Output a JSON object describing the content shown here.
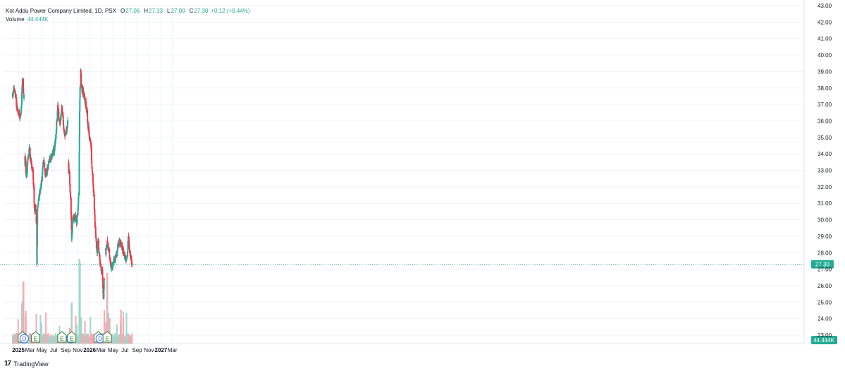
{
  "legend": {
    "symbol": "Kot Addu Power Company Limited, 1D, PSX",
    "o_key": "O",
    "o_val": "27.06",
    "h_key": "H",
    "h_val": "27.33",
    "l_key": "L",
    "l_val": "27.00",
    "c_key": "C",
    "c_val": "27.30",
    "change": "+0.12 (+0.44%)",
    "volume_label": "Volume",
    "volume_value": "44.444K"
  },
  "brand": {
    "logo": "17",
    "name": "TradingView"
  },
  "colors": {
    "up": "#22ab94",
    "down": "#f23645",
    "up_vol": "#9fd8cc",
    "down_vol": "#f7a9b0",
    "grid": "#f0f3fa",
    "axis_text": "#131722",
    "price_line": "#22ab94"
  },
  "chart_data": {
    "type": "candlestick",
    "title": "Kot Addu Power Company Limited, 1D, PSX",
    "y_axis": {
      "ticks": [
        "43.00",
        "42.00",
        "41.00",
        "40.00",
        "39.00",
        "38.00",
        "37.00",
        "36.00",
        "35.00",
        "34.00",
        "33.00",
        "32.00",
        "31.00",
        "30.00",
        "29.00",
        "28.00",
        "27.00",
        "26.00",
        "25.00",
        "24.00",
        "23.00"
      ],
      "range": [
        22.6,
        43.0
      ]
    },
    "x_axis": {
      "ticks": [
        "2025",
        "Mar",
        "May",
        "Jul",
        "Sep",
        "Nov",
        "2026",
        "Mar",
        "May",
        "Jul",
        "Sep",
        "Nov",
        "2027",
        "Mar"
      ],
      "bold": [
        "2025",
        "2026",
        "2027"
      ]
    },
    "last_price": "27.30",
    "volume_last": "44.444K",
    "price_path": [
      [
        "2025-01-01",
        37.6
      ],
      [
        "2025-01-10",
        38.0
      ],
      [
        "2025-01-20",
        37.0
      ],
      [
        "2025-02-01",
        36.3
      ],
      [
        "2025-02-10",
        36.2
      ],
      [
        "2025-02-15",
        37.0
      ],
      [
        "2025-02-20",
        38.6
      ],
      [
        "2025-02-25",
        37.8
      ],
      [
        "2025-03-01",
        37.3
      ],
      [
        "2025-03-05",
        33.8
      ],
      [
        "2025-03-12",
        32.6
      ],
      [
        "2025-03-20",
        33.6
      ],
      [
        "2025-03-28",
        34.3
      ],
      [
        "2025-04-05",
        33.4
      ],
      [
        "2025-04-15",
        32.9
      ],
      [
        "2025-04-22",
        30.6
      ],
      [
        "2025-04-28",
        30.8
      ],
      [
        "2025-05-03",
        29.7
      ],
      [
        "2025-05-05",
        27.4
      ],
      [
        "2025-05-08",
        30.6
      ],
      [
        "2025-05-15",
        31.3
      ],
      [
        "2025-05-25",
        32.0
      ],
      [
        "2025-06-01",
        32.6
      ],
      [
        "2025-06-08",
        33.9
      ],
      [
        "2025-06-15",
        32.8
      ],
      [
        "2025-06-25",
        32.9
      ],
      [
        "2025-07-05",
        33.6
      ],
      [
        "2025-07-15",
        33.7
      ],
      [
        "2025-07-25",
        34.0
      ],
      [
        "2025-08-05",
        34.5
      ],
      [
        "2025-08-12",
        35.5
      ],
      [
        "2025-08-20",
        36.8
      ],
      [
        "2025-08-28",
        35.8
      ],
      [
        "2025-09-05",
        36.2
      ],
      [
        "2025-09-10",
        36.9
      ],
      [
        "2025-09-15",
        36.4
      ],
      [
        "2025-09-20",
        35.3
      ],
      [
        "2025-09-28",
        35.2
      ],
      [
        "2025-10-05",
        35.4
      ],
      [
        "2025-10-10",
        35.9
      ],
      [
        "2025-10-14",
        33.4
      ],
      [
        "2025-10-20",
        32.2
      ],
      [
        "2025-10-25",
        31.2
      ],
      [
        "2025-10-30",
        29.0
      ],
      [
        "2025-11-05",
        30.2
      ],
      [
        "2025-11-15",
        30.1
      ],
      [
        "2025-11-25",
        29.9
      ],
      [
        "2025-12-01",
        30.6
      ],
      [
        "2025-12-06",
        31.8
      ],
      [
        "2025-12-10",
        36.5
      ],
      [
        "2025-12-14",
        39.5
      ],
      [
        "2025-12-20",
        38.0
      ],
      [
        "2026-01-01",
        37.6
      ],
      [
        "2026-01-15",
        36.6
      ],
      [
        "2026-01-25",
        35.2
      ],
      [
        "2026-02-05",
        34.8
      ],
      [
        "2026-02-12",
        33.0
      ],
      [
        "2026-02-20",
        31.5
      ],
      [
        "2026-02-27",
        29.7
      ],
      [
        "2026-03-05",
        28.6
      ],
      [
        "2026-03-08",
        27.6
      ],
      [
        "2026-03-15",
        29.0
      ],
      [
        "2026-03-20",
        27.8
      ],
      [
        "2026-03-28",
        27.0
      ],
      [
        "2026-04-05",
        26.9
      ],
      [
        "2026-04-10",
        25.3
      ],
      [
        "2026-04-15",
        26.4
      ],
      [
        "2026-04-22",
        28.0
      ],
      [
        "2026-04-30",
        28.6
      ],
      [
        "2026-05-08",
        28.1
      ],
      [
        "2026-05-15",
        27.4
      ],
      [
        "2026-05-25",
        27.1
      ],
      [
        "2026-06-05",
        27.6
      ],
      [
        "2026-06-15",
        27.8
      ],
      [
        "2026-06-25",
        28.5
      ],
      [
        "2026-07-05",
        28.6
      ],
      [
        "2026-07-15",
        28.3
      ],
      [
        "2026-07-25",
        27.9
      ],
      [
        "2026-08-05",
        27.6
      ],
      [
        "2026-08-12",
        27.9
      ],
      [
        "2026-08-16",
        29.3
      ],
      [
        "2026-08-22",
        28.2
      ],
      [
        "2026-08-30",
        27.6
      ],
      [
        "2026-09-04",
        27.3
      ]
    ],
    "events": [
      {
        "type": "E",
        "date": "2025-02-20"
      },
      {
        "type": "D",
        "date": "2025-03-01"
      },
      {
        "type": "E",
        "date": "2025-04-28"
      },
      {
        "type": "E",
        "date": "2025-09-10"
      },
      {
        "type": "D",
        "date": "2025-10-25"
      },
      {
        "type": "E",
        "date": "2025-10-30"
      },
      {
        "type": "E",
        "date": "2026-03-15"
      },
      {
        "type": "D",
        "date": "2026-03-25"
      },
      {
        "type": "E",
        "date": "2026-04-30"
      }
    ]
  }
}
